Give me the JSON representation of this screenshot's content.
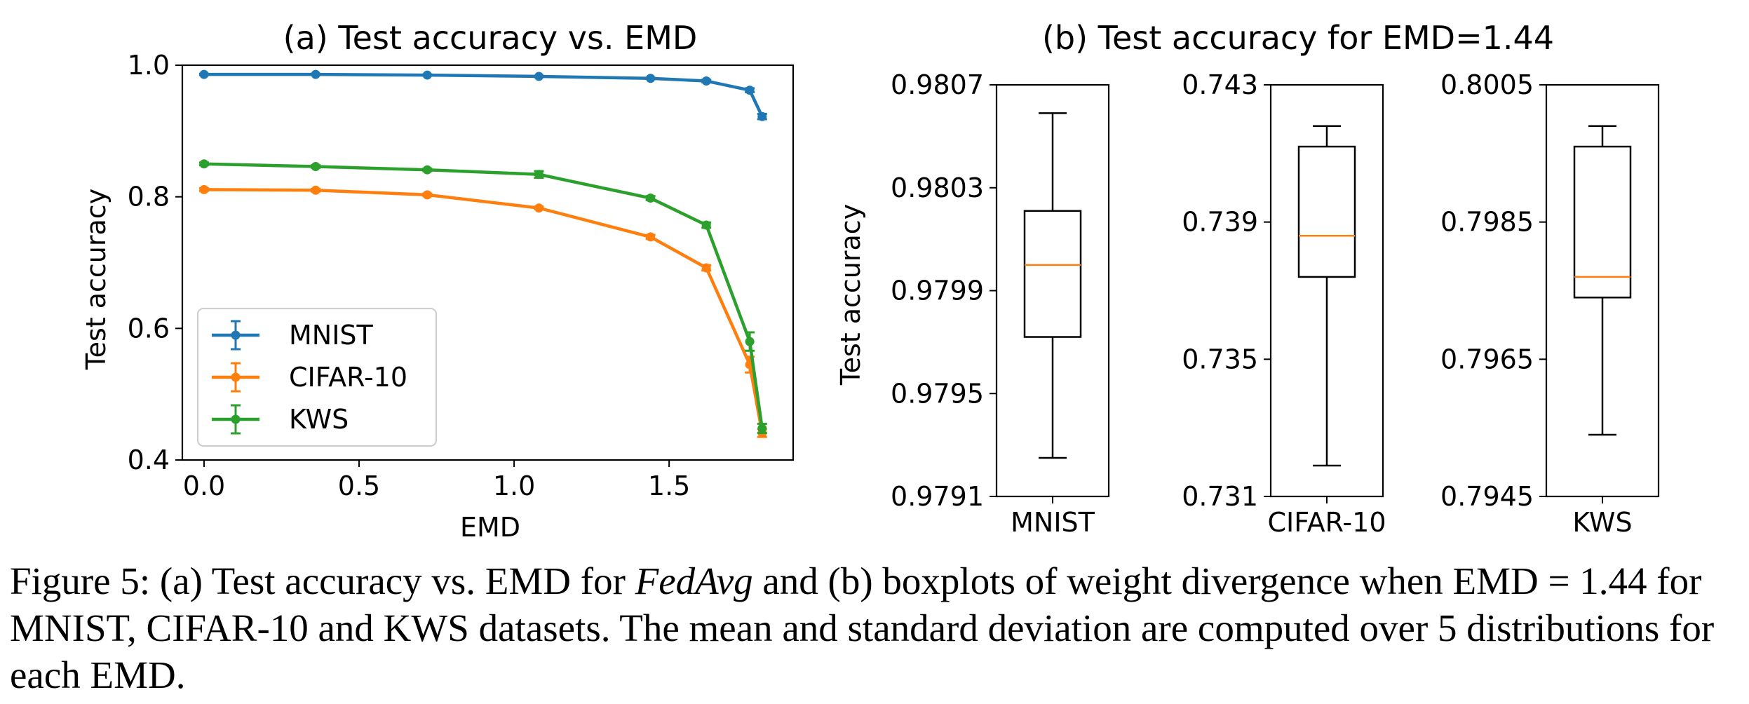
{
  "chart_data": [
    {
      "type": "line",
      "title": "(a) Test accuracy vs. EMD",
      "xlabel": "EMD",
      "ylabel": "Test accuracy",
      "xlim": [
        -0.07,
        1.9
      ],
      "ylim": [
        0.4,
        1.0
      ],
      "xticks": [
        "0.0",
        "0.5",
        "1.0",
        "1.5"
      ],
      "yticks": [
        "0.4",
        "0.6",
        "0.8",
        "1.0"
      ],
      "legend_position": "lower-left",
      "x": [
        0.0,
        0.36,
        0.72,
        1.08,
        1.44,
        1.62,
        1.76,
        1.8
      ],
      "series": [
        {
          "name": "MNIST",
          "color": "#1f77b4",
          "values": [
            0.986,
            0.986,
            0.985,
            0.983,
            0.98,
            0.976,
            0.962,
            0.922
          ],
          "error": [
            0.001,
            0.001,
            0.001,
            0.001,
            0.001,
            0.002,
            0.003,
            0.004
          ]
        },
        {
          "name": "CIFAR-10",
          "color": "#ff7f0e",
          "values": [
            0.811,
            0.81,
            0.803,
            0.783,
            0.739,
            0.692,
            0.545,
            0.441
          ],
          "error": [
            0.002,
            0.002,
            0.002,
            0.002,
            0.003,
            0.004,
            0.012,
            0.006
          ]
        },
        {
          "name": "KWS",
          "color": "#2ca02c",
          "values": [
            0.85,
            0.846,
            0.841,
            0.834,
            0.798,
            0.757,
            0.58,
            0.448
          ],
          "error": [
            0.002,
            0.002,
            0.002,
            0.005,
            0.003,
            0.004,
            0.014,
            0.007
          ]
        }
      ]
    },
    {
      "type": "boxplot",
      "title": "(b) Test accuracy for EMD=1.44",
      "ylabel": "Test accuracy",
      "panels": [
        {
          "category": "MNIST",
          "ylim": [
            0.9791,
            0.9807
          ],
          "yticks": [
            "0.9791",
            "0.9795",
            "0.9799",
            "0.9803",
            "0.9807"
          ],
          "whisker_low": 0.97925,
          "q1": 0.97972,
          "median": 0.98,
          "q3": 0.98021,
          "whisker_high": 0.98059
        },
        {
          "category": "CIFAR-10",
          "ylim": [
            0.731,
            0.743
          ],
          "yticks": [
            "0.731",
            "0.735",
            "0.739",
            "0.743"
          ],
          "whisker_low": 0.7319,
          "q1": 0.7374,
          "median": 0.7386,
          "q3": 0.7412,
          "whisker_high": 0.7418
        },
        {
          "category": "KWS",
          "ylim": [
            0.7945,
            0.8005
          ],
          "yticks": [
            "0.7945",
            "0.7965",
            "0.7985",
            "0.8005"
          ],
          "whisker_low": 0.7954,
          "q1": 0.7974,
          "median": 0.7977,
          "q3": 0.7996,
          "whisker_high": 0.7999
        }
      ],
      "median_color": "#ff7f0e"
    }
  ],
  "caption": {
    "part1": "Figure 5: (a) Test accuracy vs. EMD for ",
    "method": "FedAvg",
    "part2": " and (b) boxplots of weight divergence when EMD = 1.44 for MNIST, CIFAR-10 and KWS datasets. The mean and standard deviation are computed over 5 distributions for each EMD."
  }
}
